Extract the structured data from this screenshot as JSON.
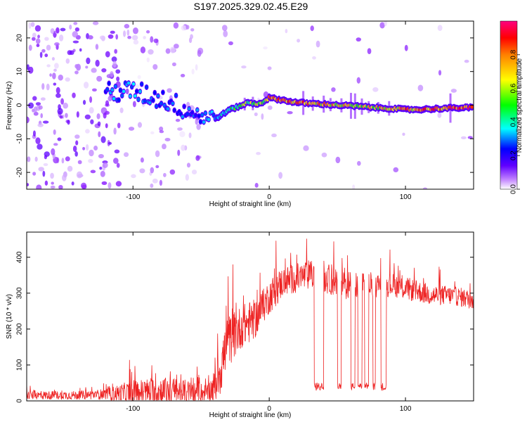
{
  "title": "S197.2025.329.02.45.E29",
  "chart_data": [
    {
      "type": "heatmap",
      "name": "spectrogram",
      "xlabel": "Height of straight line (km)",
      "ylabel": "Frequency (Hz)",
      "xlim": [
        -178,
        150
      ],
      "ylim": [
        -25,
        25
      ],
      "xticks": [
        -100,
        0,
        100
      ],
      "yticks": [
        -20,
        -10,
        0,
        10,
        20
      ],
      "colorbar": {
        "label": "Normalized spectral amplitude",
        "range": [
          0.0,
          1.0
        ],
        "ticks": [
          "0.0",
          "0.2",
          "0.4",
          "0.6",
          "0.8"
        ],
        "colors": [
          "#ffffff",
          "#7a00ff",
          "#0000ff",
          "#00ffff",
          "#00ff00",
          "#ffff00",
          "#ff8000",
          "#ff0000",
          "#ff0080"
        ]
      },
      "signal_track": {
        "x": [
          -120,
          -110,
          -100,
          -90,
          -80,
          -70,
          -60,
          -50,
          -40,
          -35,
          -30,
          -25,
          -20,
          -15,
          -10,
          -5,
          0,
          10,
          20,
          30,
          40,
          50,
          60,
          70,
          80,
          90,
          100,
          110,
          120,
          130,
          140,
          150
        ],
        "freq": [
          3.5,
          4.0,
          4.2,
          3.0,
          2.0,
          0.5,
          -1.5,
          -3.0,
          -4.0,
          -3.0,
          -1.5,
          -0.8,
          0.0,
          0.8,
          0.3,
          0.8,
          2.2,
          1.5,
          0.8,
          0.5,
          0.3,
          0.0,
          -0.2,
          -0.5,
          -0.8,
          -1.0,
          -1.3,
          -1.3,
          -1.1,
          -0.9,
          -0.8,
          -0.7
        ],
        "amplitude": [
          0.3,
          0.35,
          0.35,
          0.3,
          0.3,
          0.3,
          0.3,
          0.3,
          0.35,
          0.4,
          0.45,
          0.5,
          0.55,
          0.6,
          0.55,
          0.6,
          0.75,
          0.85,
          0.8,
          0.85,
          0.75,
          0.7,
          0.7,
          0.65,
          0.7,
          0.75,
          0.8,
          0.8,
          0.8,
          0.85,
          0.9,
          0.95
        ]
      }
    },
    {
      "type": "line",
      "name": "snr",
      "xlabel": "Height of straight line (km)",
      "ylabel": "SNR (10 * v/v)",
      "xlim": [
        -178,
        150
      ],
      "ylim": [
        0,
        470
      ],
      "xticks": [
        -100,
        0,
        100
      ],
      "yticks": [
        0,
        100,
        200,
        300,
        400
      ],
      "color": "#ee2222",
      "envelope": {
        "x": [
          -178,
          -140,
          -120,
          -100,
          -80,
          -60,
          -45,
          -40,
          -35,
          -30,
          -25,
          -20,
          -15,
          -10,
          -5,
          0,
          5,
          10,
          20,
          30,
          40,
          50,
          60,
          70,
          80,
          90,
          100,
          110,
          120,
          130,
          140,
          150
        ],
        "base": [
          18,
          18,
          22,
          30,
          35,
          30,
          28,
          50,
          120,
          180,
          200,
          220,
          230,
          240,
          270,
          300,
          320,
          340,
          350,
          360,
          350,
          340,
          330,
          330,
          330,
          330,
          320,
          310,
          300,
          300,
          295,
          285
        ],
        "amp": [
          20,
          20,
          25,
          60,
          70,
          60,
          40,
          80,
          140,
          120,
          110,
          100,
          100,
          90,
          80,
          80,
          80,
          70,
          70,
          70,
          70,
          70,
          70,
          60,
          60,
          55,
          55,
          50,
          50,
          45,
          45,
          45
        ]
      },
      "dropouts": [
        {
          "x": [
            33,
            40
          ],
          "level": 40
        },
        {
          "x": [
            50,
            53
          ],
          "level": 40
        },
        {
          "x": [
            60,
            63
          ],
          "level": 40
        },
        {
          "x": [
            65,
            68
          ],
          "level": 40
        },
        {
          "x": [
            70,
            73
          ],
          "level": 40
        },
        {
          "x": [
            76,
            78
          ],
          "level": 40
        },
        {
          "x": [
            82,
            86
          ],
          "level": 40
        }
      ]
    }
  ]
}
